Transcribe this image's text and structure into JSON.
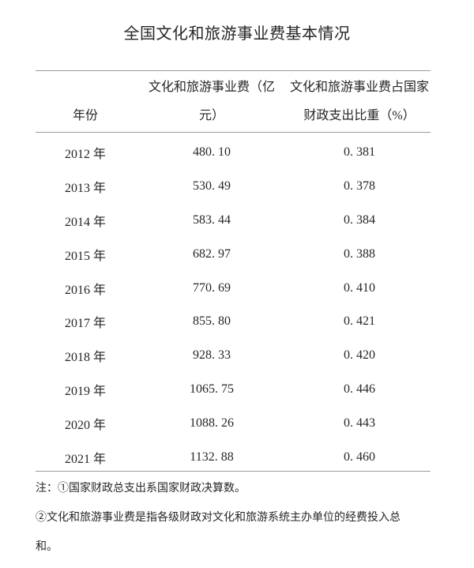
{
  "page": {
    "background_color": "#ffffff",
    "text_color": "#262626",
    "rule_color": "#9b9b9b"
  },
  "title": "全国文化和旅游事业费基本情况",
  "table": {
    "header": {
      "year": "年份",
      "expenditure_line1": "文化和旅游事业费（亿",
      "expenditure_line2": "元）",
      "share_line1": "文化和旅游事业费占国家",
      "share_line2": "财政支出比重（%）"
    },
    "rows": [
      {
        "year": "2012 年",
        "expenditure": "480. 10",
        "share": "0. 381"
      },
      {
        "year": "2013 年",
        "expenditure": "530. 49",
        "share": "0. 378"
      },
      {
        "year": "2014 年",
        "expenditure": "583. 44",
        "share": "0. 384"
      },
      {
        "year": "2015 年",
        "expenditure": "682. 97",
        "share": "0. 388"
      },
      {
        "year": "2016 年",
        "expenditure": "770. 69",
        "share": "0. 410"
      },
      {
        "year": "2017 年",
        "expenditure": "855. 80",
        "share": "0. 421"
      },
      {
        "year": "2018 年",
        "expenditure": "928. 33",
        "share": "0. 420"
      },
      {
        "year": "2019 年",
        "expenditure": "1065. 75",
        "share": "0. 446"
      },
      {
        "year": "2020 年",
        "expenditure": "1088. 26",
        "share": "0. 443"
      },
      {
        "year": "2021 年",
        "expenditure": "1132. 88",
        "share": "0. 460"
      }
    ]
  },
  "notes": {
    "line1": "注：①国家财政总支出系国家财政决算数。",
    "line2": "②文化和旅游事业费是指各级财政对文化和旅游系统主办单位的经费投入总",
    "line3": "和。"
  }
}
